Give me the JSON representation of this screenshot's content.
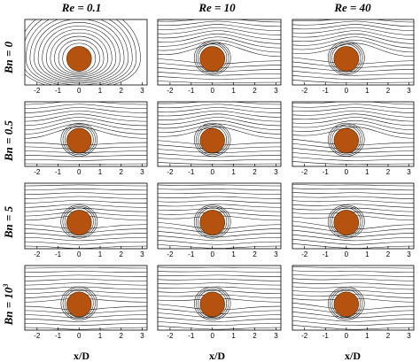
{
  "figure": {
    "column_titles": [
      "Re = 0.1",
      "Re = 10",
      "Re = 40"
    ],
    "row_titles": [
      "Bn = 0",
      "Bn = 0.5",
      "Bn = 5",
      "Bn = 10"
    ],
    "row_title_superscript": [
      "",
      "",
      "",
      "3"
    ],
    "x_tick_labels": [
      "-2",
      "-1",
      "0",
      "1",
      "2",
      "3"
    ],
    "x_axis_label": "x/D",
    "cylinder_color": "#b5520f",
    "streamline_color": "#1a1a1a"
  }
}
